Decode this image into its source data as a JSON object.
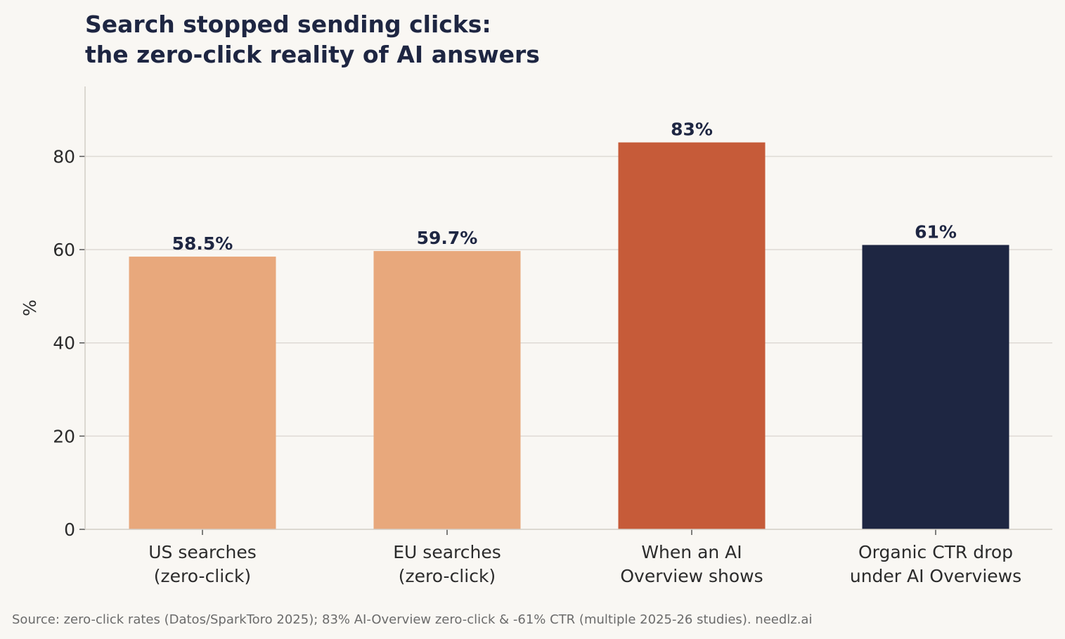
{
  "chart_data": {
    "type": "bar",
    "title_lines": [
      "Search stopped sending clicks:",
      "the zero-click reality of AI answers"
    ],
    "categories": [
      [
        "US searches",
        "(zero-click)"
      ],
      [
        "EU searches",
        "(zero-click)"
      ],
      [
        "When an AI",
        "Overview shows"
      ],
      [
        "Organic CTR drop",
        "under AI Overviews"
      ]
    ],
    "values": [
      58.5,
      59.7,
      83,
      61
    ],
    "value_labels": [
      "58.5%",
      "59.7%",
      "83%",
      "61%"
    ],
    "colors": [
      "#e8a87c",
      "#e8a87c",
      "#c65b39",
      "#1e2642"
    ],
    "ylabel": "%",
    "xlabel": "",
    "ylim": [
      0,
      95
    ],
    "yticks": [
      0,
      20,
      40,
      60,
      80
    ],
    "grid": "horizontal",
    "legend": "none"
  },
  "footer": {
    "source": "Source: zero-click rates (Datos/SparkToro 2025); 83% AI-Overview zero-click & -61% CTR (multiple 2025-26 studies).   needlz.ai"
  },
  "colors": {
    "background": "#f9f7f3",
    "text_dark": "#1e2642",
    "grid": "#dedad4"
  }
}
